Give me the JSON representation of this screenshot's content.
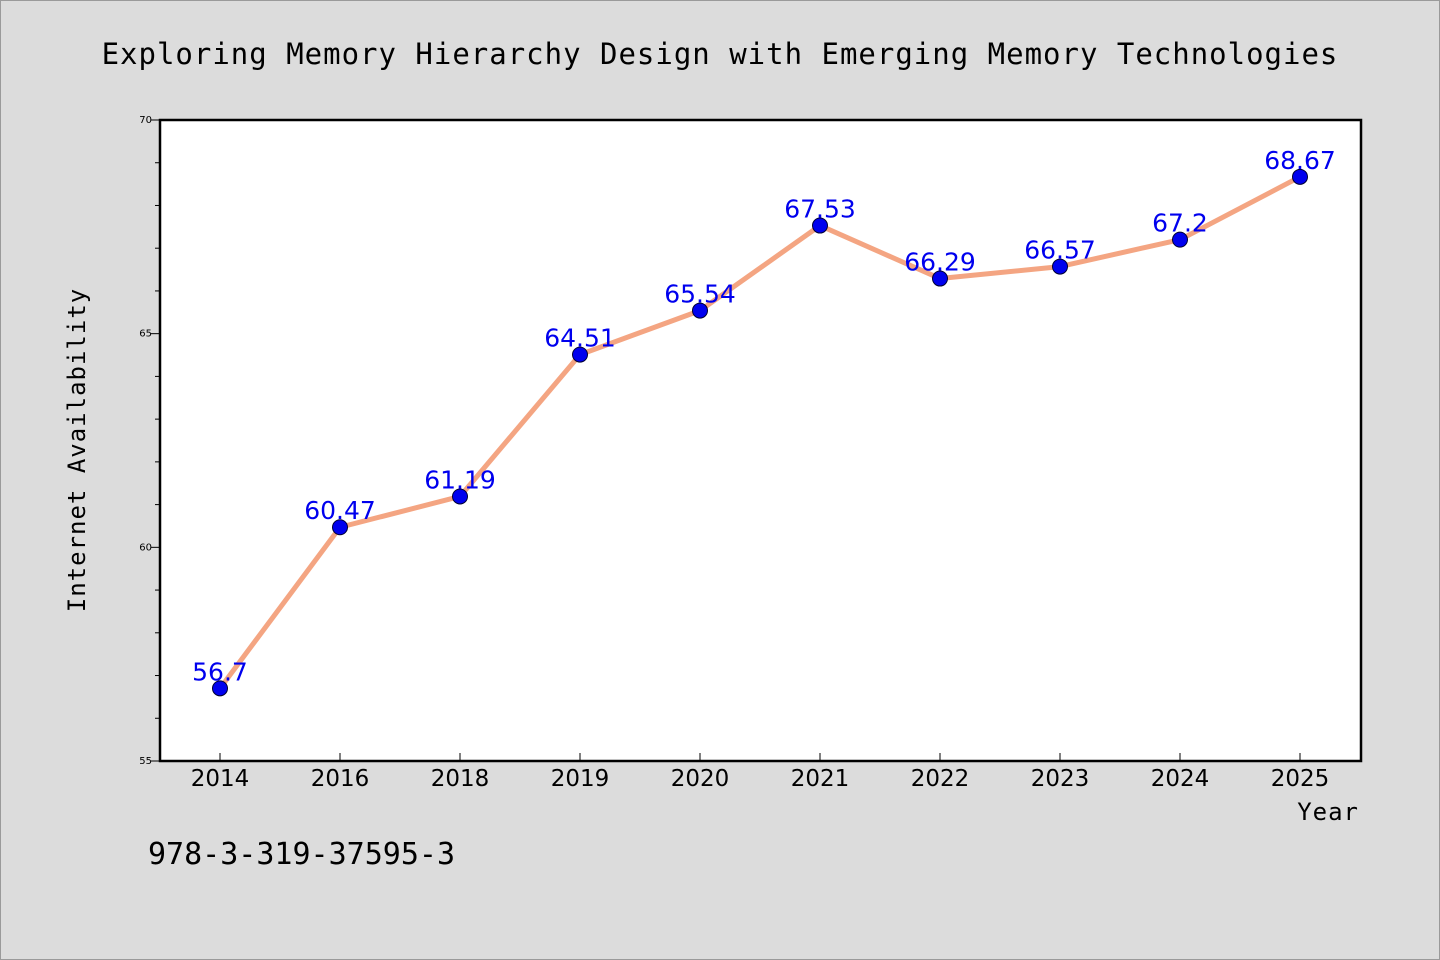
{
  "chart_data": {
    "type": "line",
    "title": "Exploring Memory Hierarchy Design with Emerging Memory Technologies",
    "xlabel": "Year",
    "ylabel": "Internet Availability",
    "categories": [
      "2014",
      "2016",
      "2018",
      "2019",
      "2020",
      "2021",
      "2022",
      "2023",
      "2024",
      "2025"
    ],
    "series": [
      {
        "values": [
          56.7,
          60.47,
          61.19,
          64.51,
          65.54,
          67.53,
          66.29,
          66.57,
          67.2,
          68.67
        ],
        "labels": [
          "56.7",
          "60.47",
          "61.19",
          "64.51",
          "65.54",
          "67.53",
          "66.29",
          "66.57",
          "67.2",
          "68.67"
        ]
      }
    ],
    "ylim": [
      55,
      70
    ],
    "yticks": [
      55,
      60,
      65,
      70
    ],
    "ytick_labels": [
      "55",
      "60",
      "65",
      "70"
    ],
    "grid": false,
    "line_color": "#f4a582",
    "marker_color": "#0000ee",
    "label_color": "#0000ee"
  },
  "footnote": "978-3-319-37595-3"
}
